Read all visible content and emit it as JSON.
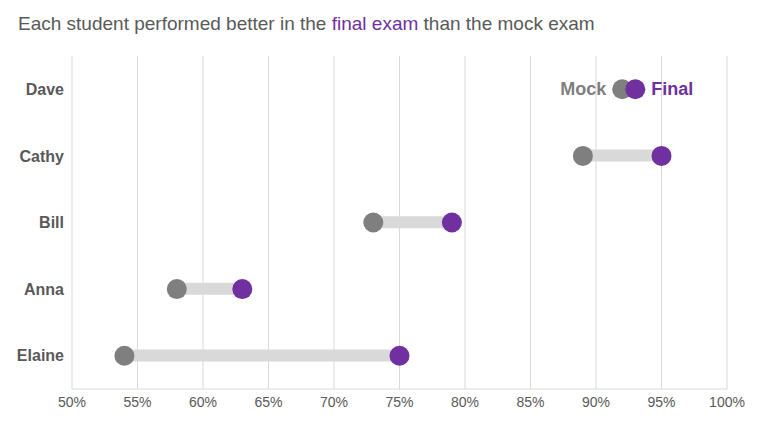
{
  "chart_data": {
    "type": "dumbbell",
    "title": "Each student performed better in the final exam than the mock exam",
    "title_highlight": "final exam",
    "categories": [
      "Dave",
      "Cathy",
      "Bill",
      "Anna",
      "Elaine"
    ],
    "series": [
      {
        "name": "Mock",
        "color": "#7f7f7f",
        "values": [
          92,
          89,
          73,
          58,
          54
        ]
      },
      {
        "name": "Final",
        "color": "#7030a0",
        "values": [
          93,
          95,
          79,
          63,
          75
        ]
      }
    ],
    "xlim": [
      50,
      100
    ],
    "xticks": [
      {
        "value": 50,
        "label": "50%"
      },
      {
        "value": 55,
        "label": "55%"
      },
      {
        "value": 60,
        "label": "60%"
      },
      {
        "value": 65,
        "label": "65%"
      },
      {
        "value": 70,
        "label": "70%"
      },
      {
        "value": 75,
        "label": "75%"
      },
      {
        "value": 80,
        "label": "80%"
      },
      {
        "value": 85,
        "label": "85%"
      },
      {
        "value": 90,
        "label": "90%"
      },
      {
        "value": 95,
        "label": "95%"
      },
      {
        "value": 100,
        "label": "100%"
      }
    ],
    "grid": true,
    "orientation": "horizontal"
  }
}
